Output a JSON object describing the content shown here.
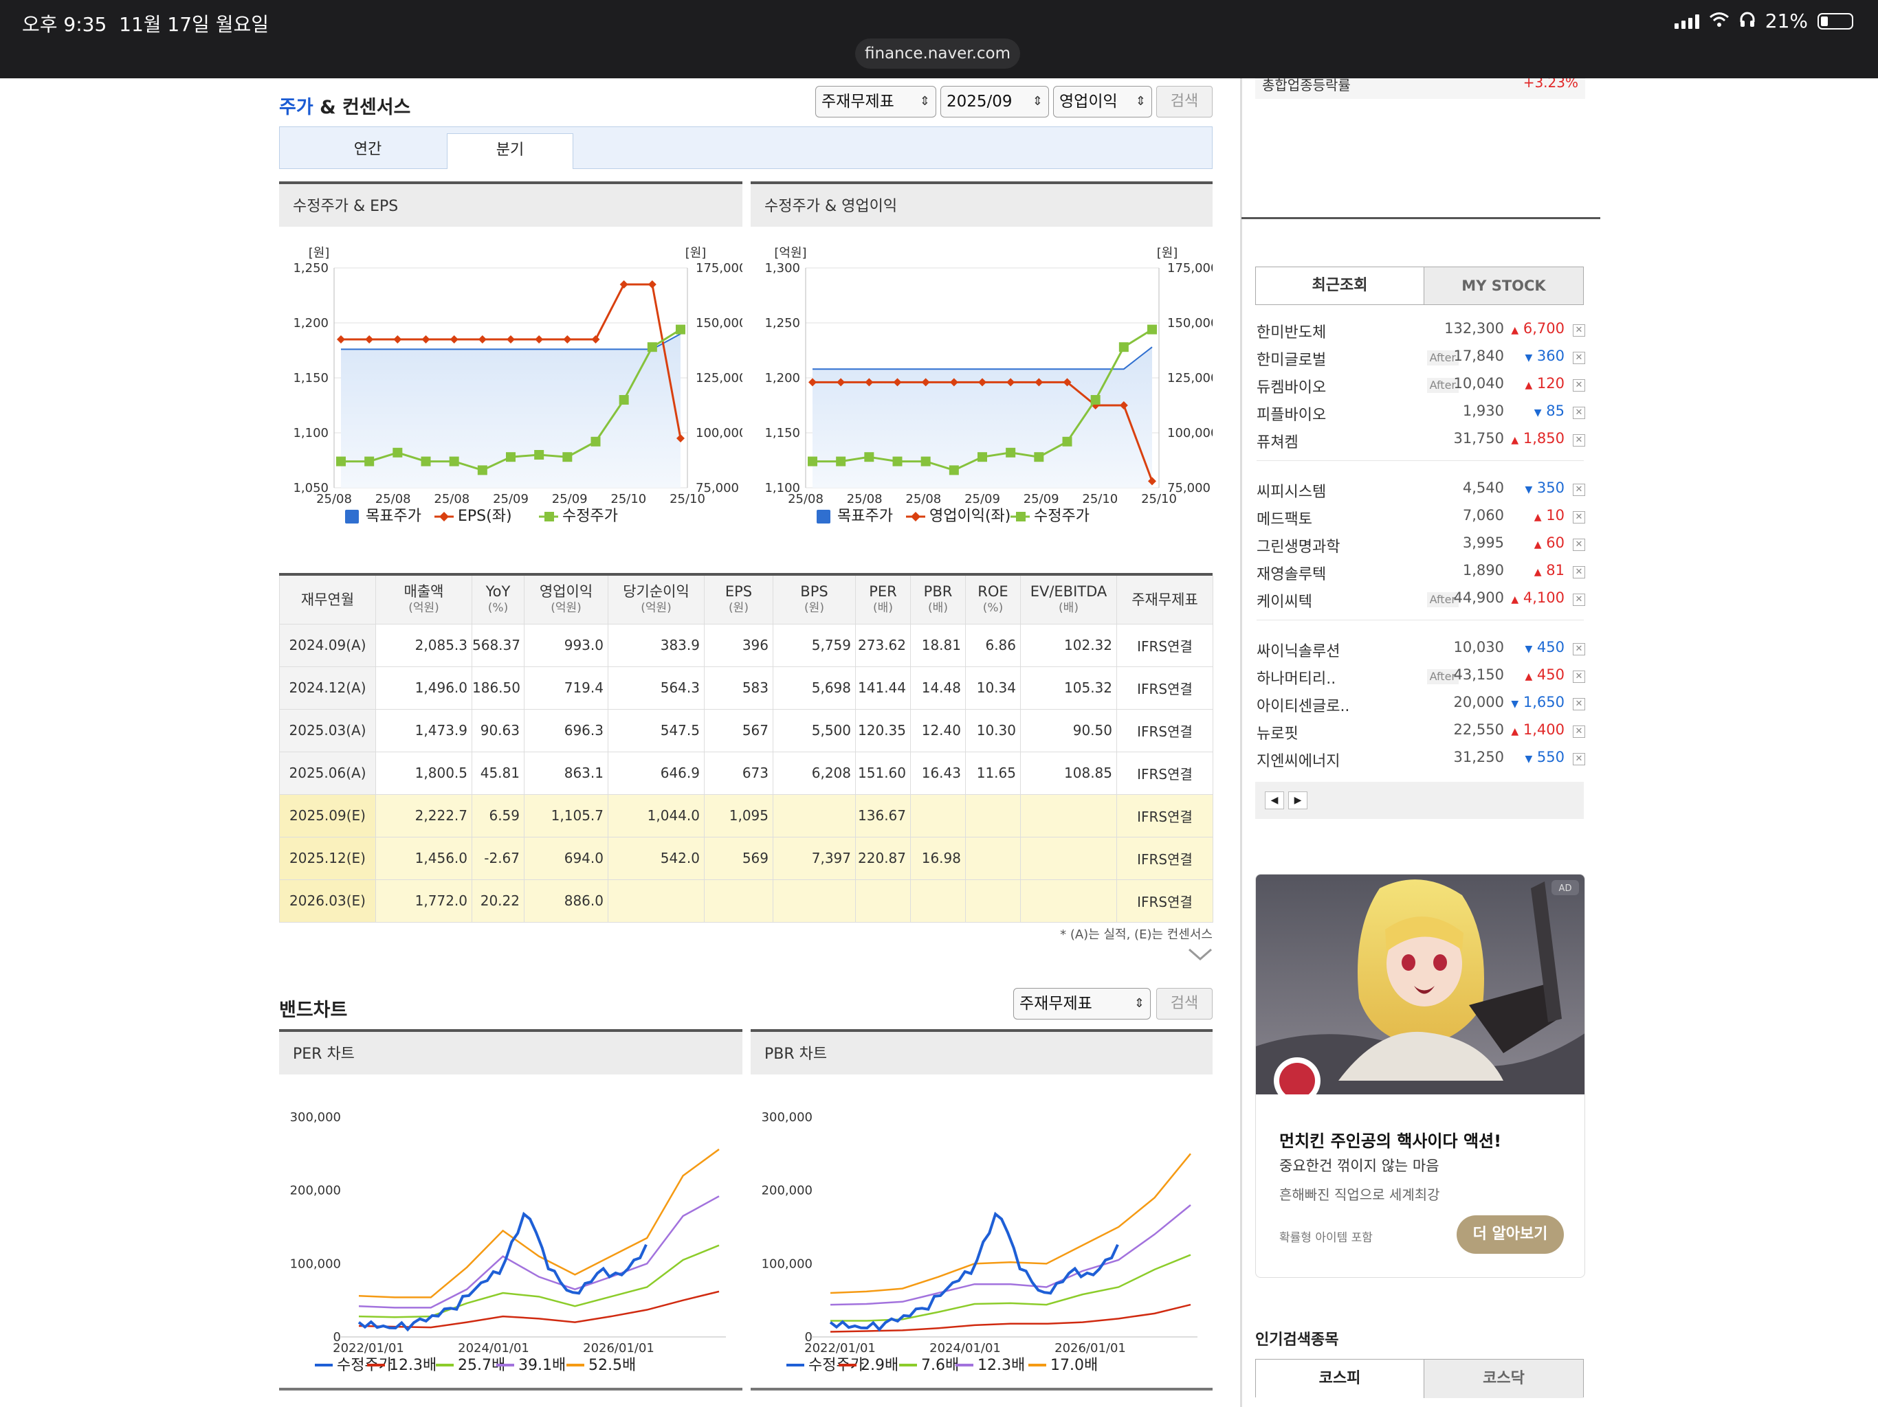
{
  "statusbar": {
    "time": "오후 9:35",
    "date": "11월 17일 월요일",
    "url": "finance.naver.com",
    "battery": "21%"
  },
  "consensus": {
    "title_a": "주가",
    "title_b": " & 컨센서스",
    "selects": [
      "주재무제표",
      "2025/09",
      "영업이익"
    ],
    "search": "검색",
    "tabs": [
      "연간",
      "분기"
    ],
    "active_tab": "분기"
  },
  "chart1": {
    "header": "수정주가 & EPS",
    "left_unit": "[원]",
    "right_unit": "[원]",
    "legend": [
      "목표주가",
      "EPS(좌)",
      "수정주가"
    ]
  },
  "chart2": {
    "header": "수정주가 & 영업이익",
    "left_unit": "[억원]",
    "right_unit": "[원]",
    "legend": [
      "목표주가",
      "영업이익(좌)",
      "수정주가"
    ]
  },
  "chart_data": [
    {
      "type": "line",
      "x_ticks": [
        "25/08",
        "25/08",
        "25/08",
        "25/09",
        "25/09",
        "25/10",
        "25/10"
      ],
      "left_ticks": [
        "1,250",
        "1,200",
        "1,150",
        "1,100",
        "1,050"
      ],
      "right_ticks": [
        "175,000",
        "150,000",
        "125,000",
        "100,000",
        "75,000"
      ],
      "ylim_left": [
        1050,
        1250
      ],
      "ylim_right": [
        75000,
        175000
      ],
      "series": [
        {
          "name": "목표주가",
          "axis": "right",
          "color": "#2f6fd0",
          "values": [
            138000,
            138000,
            138000,
            138000,
            138000,
            138000,
            138000,
            138000,
            138000,
            138000,
            138000,
            138000,
            145000
          ]
        },
        {
          "name": "EPS(좌)",
          "axis": "left",
          "color": "#d9400f",
          "values": [
            1185,
            1185,
            1185,
            1185,
            1185,
            1185,
            1185,
            1185,
            1185,
            1185,
            1235,
            1235,
            1095
          ]
        },
        {
          "name": "수정주가",
          "axis": "right",
          "color": "#86c23c",
          "values": [
            87000,
            87000,
            91000,
            87000,
            87000,
            83000,
            89000,
            90000,
            89000,
            96000,
            115000,
            139000,
            147000
          ]
        }
      ]
    },
    {
      "type": "line",
      "x_ticks": [
        "25/08",
        "25/08",
        "25/08",
        "25/09",
        "25/09",
        "25/10",
        "25/10"
      ],
      "left_ticks": [
        "1,300",
        "1,250",
        "1,200",
        "1,150",
        "1,100"
      ],
      "right_ticks": [
        "175,000",
        "150,000",
        "125,000",
        "100,000",
        "75,000"
      ],
      "ylim_left": [
        1100,
        1300
      ],
      "ylim_right": [
        75000,
        175000
      ],
      "series": [
        {
          "name": "목표주가",
          "axis": "right",
          "color": "#2f6fd0",
          "values": [
            129000,
            129000,
            129000,
            129000,
            129000,
            129000,
            129000,
            129000,
            129000,
            129000,
            129000,
            129000,
            139000
          ]
        },
        {
          "name": "영업이익(좌)",
          "axis": "left",
          "color": "#d9400f",
          "values": [
            1196,
            1196,
            1196,
            1196,
            1196,
            1196,
            1196,
            1196,
            1196,
            1196,
            1175,
            1175,
            1106
          ]
        },
        {
          "name": "수정주가",
          "axis": "right",
          "color": "#86c23c",
          "values": [
            87000,
            87000,
            89000,
            87000,
            87000,
            83000,
            89000,
            91000,
            89000,
            96000,
            115000,
            139000,
            147000
          ]
        }
      ]
    },
    {
      "type": "table",
      "columns": [
        "재무연월",
        "매출액|(억원)",
        "YoY|(%)",
        "영업이익|(억원)",
        "당기순이익|(억원)",
        "EPS|(원)",
        "BPS|(원)",
        "PER|(배)",
        "PBR|(배)",
        "ROE|(%)",
        "EV/EBITDA|(배)",
        "주재무제표"
      ],
      "rows": [
        [
          "2024.09(A)",
          "2,085.3",
          "568.37",
          "993.0",
          "383.9",
          "396",
          "5,759",
          "273.62",
          "18.81",
          "6.86",
          "102.32",
          "IFRS연결"
        ],
        [
          "2024.12(A)",
          "1,496.0",
          "186.50",
          "719.4",
          "564.3",
          "583",
          "5,698",
          "141.44",
          "14.48",
          "10.34",
          "105.32",
          "IFRS연결"
        ],
        [
          "2025.03(A)",
          "1,473.9",
          "90.63",
          "696.3",
          "547.5",
          "567",
          "5,500",
          "120.35",
          "12.40",
          "10.30",
          "90.50",
          "IFRS연결"
        ],
        [
          "2025.06(A)",
          "1,800.5",
          "45.81",
          "863.1",
          "646.9",
          "673",
          "6,208",
          "151.60",
          "16.43",
          "11.65",
          "108.85",
          "IFRS연결"
        ],
        [
          "2025.09(E)",
          "2,222.7",
          "6.59",
          "1,105.7",
          "1,044.0",
          "1,095",
          "",
          "136.67",
          "",
          "",
          "",
          "IFRS연결"
        ],
        [
          "2025.12(E)",
          "1,456.0",
          "-2.67",
          "694.0",
          "542.0",
          "569",
          "7,397",
          "220.87",
          "16.98",
          "",
          "",
          "IFRS연결"
        ],
        [
          "2026.03(E)",
          "1,772.0",
          "20.22",
          "886.0",
          "",
          "",
          "",
          "",
          "",
          "",
          "",
          "IFRS연결"
        ]
      ],
      "note": "* (A)는 실적, (E)는 컨센서스"
    },
    {
      "type": "line",
      "title": "PER 차트",
      "y_ticks": [
        "300,000",
        "200,000",
        "100,000",
        "0"
      ],
      "x_ticks": [
        "2022/01/01",
        "2024/01/01",
        "2026/01/01"
      ],
      "ylim": [
        0,
        300000
      ],
      "series": [
        {
          "name": "수정주가",
          "color": "#1e5fd6",
          "values": [
            20000,
            18000,
            15000,
            22000,
            40000,
            75000,
            95000,
            170000,
            90000,
            60000,
            90000,
            80000,
            120000
          ]
        },
        {
          "name": "12.3배",
          "color": "#d02a10",
          "values": [
            15000,
            14000,
            13000,
            20000,
            28000,
            25000,
            20000,
            28000,
            37000,
            50000,
            62000
          ]
        },
        {
          "name": "25.7배",
          "color": "#8ccc2a",
          "values": [
            28000,
            27000,
            28000,
            46000,
            60000,
            55000,
            42000,
            55000,
            68000,
            105000,
            125000
          ]
        },
        {
          "name": "39.1배",
          "color": "#a272dd",
          "values": [
            42000,
            40000,
            40000,
            65000,
            110000,
            82000,
            65000,
            82000,
            100000,
            165000,
            192000
          ]
        },
        {
          "name": "52.5배",
          "color": "#f59a13",
          "values": [
            56000,
            54000,
            54000,
            95000,
            145000,
            110000,
            85000,
            110000,
            135000,
            220000,
            256000
          ]
        }
      ]
    },
    {
      "type": "line",
      "title": "PBR 차트",
      "y_ticks": [
        "300,000",
        "200,000",
        "100,000",
        "0"
      ],
      "x_ticks": [
        "2022/01/01",
        "2024/01/01",
        "2026/01/01"
      ],
      "ylim": [
        0,
        300000
      ],
      "series": [
        {
          "name": "수정주가",
          "color": "#1e5fd6",
          "values": [
            20000,
            18000,
            15000,
            22000,
            40000,
            75000,
            95000,
            170000,
            90000,
            60000,
            90000,
            80000,
            120000
          ]
        },
        {
          "name": "2.9배",
          "color": "#d02a10",
          "values": [
            7000,
            8000,
            9000,
            12000,
            16000,
            18000,
            18000,
            20000,
            25000,
            32000,
            44000
          ]
        },
        {
          "name": "7.6배",
          "color": "#8ccc2a",
          "values": [
            22000,
            22000,
            24000,
            34000,
            45000,
            46000,
            44000,
            58000,
            68000,
            92000,
            112000
          ]
        },
        {
          "name": "12.3배",
          "color": "#a272dd",
          "values": [
            44000,
            45000,
            48000,
            60000,
            72000,
            72000,
            68000,
            90000,
            105000,
            140000,
            180000
          ]
        },
        {
          "name": "17.0배",
          "color": "#f59a13",
          "values": [
            60000,
            62000,
            66000,
            82000,
            100000,
            102000,
            100000,
            125000,
            150000,
            190000,
            250000
          ]
        }
      ]
    }
  ],
  "band": {
    "title": "밴드차트",
    "select": "주재무제표",
    "search": "검색",
    "per_header": "PER 차트",
    "pbr_header": "PBR 차트"
  },
  "rail": {
    "top_label": "총합업종등락률",
    "top_value": "+3.23%",
    "tabs": [
      "최근조회",
      "MY STOCK"
    ],
    "groups": [
      [
        {
          "name": "한미반도체",
          "after": "",
          "price": "132,300",
          "dir": "up",
          "change": "6,700"
        },
        {
          "name": "한미글로벌",
          "after": "After",
          "price": "17,840",
          "dir": "dn",
          "change": "360"
        },
        {
          "name": "듀켐바이오",
          "after": "After",
          "price": "10,040",
          "dir": "up",
          "change": "120"
        },
        {
          "name": "피플바이오",
          "after": "",
          "price": "1,930",
          "dir": "dn",
          "change": "85"
        },
        {
          "name": "퓨쳐켐",
          "after": "",
          "price": "31,750",
          "dir": "up",
          "change": "1,850"
        }
      ],
      [
        {
          "name": "씨피시스템",
          "after": "",
          "price": "4,540",
          "dir": "dn",
          "change": "350"
        },
        {
          "name": "메드팩토",
          "after": "",
          "price": "7,060",
          "dir": "up",
          "change": "10"
        },
        {
          "name": "그린생명과학",
          "after": "",
          "price": "3,995",
          "dir": "up",
          "change": "60"
        },
        {
          "name": "재영솔루텍",
          "after": "",
          "price": "1,890",
          "dir": "up",
          "change": "81"
        },
        {
          "name": "케이씨텍",
          "after": "After",
          "price": "44,900",
          "dir": "up",
          "change": "4,100"
        }
      ],
      [
        {
          "name": "싸이닉솔루션",
          "after": "",
          "price": "10,030",
          "dir": "dn",
          "change": "450"
        },
        {
          "name": "하나머티리..",
          "after": "After",
          "price": "43,150",
          "dir": "up",
          "change": "450"
        },
        {
          "name": "아이티센글로..",
          "after": "",
          "price": "20,000",
          "dir": "dn",
          "change": "1,650"
        },
        {
          "name": "뉴로핏",
          "after": "",
          "price": "22,550",
          "dir": "up",
          "change": "1,400"
        },
        {
          "name": "지엔씨에너지",
          "after": "",
          "price": "31,250",
          "dir": "dn",
          "change": "550"
        }
      ]
    ],
    "ad": {
      "badge": "AD",
      "headline": "먼치킨 주인공의 핵사이다 액션!",
      "line1": "중요한건 꺾이지 않는 마음",
      "line2": "흔해빠진 직업으로 세계최강",
      "small": "확률형 아이템 포함",
      "cta": "더 알아보기"
    },
    "popular": {
      "title": "인기검색종목",
      "tabs": [
        "코스피",
        "코스닥"
      ]
    }
  }
}
